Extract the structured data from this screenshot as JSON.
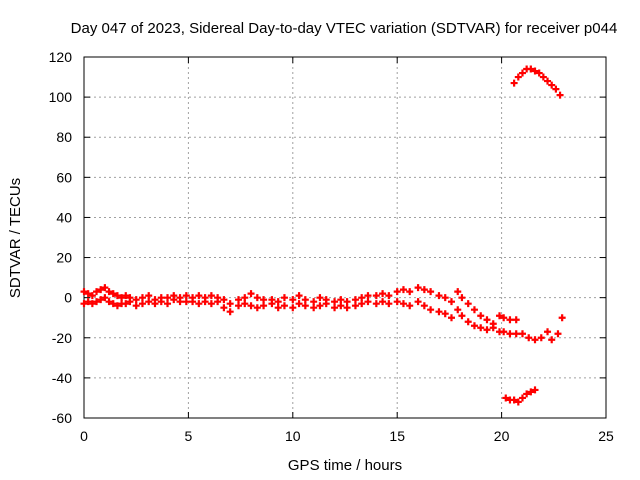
{
  "chart_data": {
    "type": "scatter",
    "title": "Day 047 of 2023, Sidereal Day-to-day VTEC variation (SDTVAR) for receiver p044",
    "xlabel": "GPS time / hours",
    "ylabel": "SDTVAR / TECUs",
    "xlim": [
      0,
      25
    ],
    "ylim": [
      -60,
      120
    ],
    "xticks": [
      0,
      5,
      10,
      15,
      20,
      25
    ],
    "yticks": [
      -60,
      -40,
      -20,
      0,
      20,
      40,
      60,
      80,
      100,
      120
    ],
    "grid": true,
    "marker": "plus",
    "colors": {
      "series": "#ff0000",
      "grid": "#a0a0a0",
      "axes": "#000000"
    },
    "series": [
      {
        "name": "main band",
        "points": [
          [
            0.0,
            3
          ],
          [
            0.0,
            -3
          ],
          [
            0.2,
            2
          ],
          [
            0.2,
            -2
          ],
          [
            0.4,
            1
          ],
          [
            0.4,
            -3
          ],
          [
            0.6,
            3
          ],
          [
            0.6,
            -2
          ],
          [
            0.8,
            4
          ],
          [
            0.8,
            -1
          ],
          [
            1.0,
            5
          ],
          [
            1.0,
            0
          ],
          [
            1.2,
            3
          ],
          [
            1.2,
            -2
          ],
          [
            1.4,
            2
          ],
          [
            1.4,
            -3
          ],
          [
            1.6,
            1
          ],
          [
            1.6,
            -4
          ],
          [
            1.8,
            0
          ],
          [
            1.8,
            -3
          ],
          [
            2.0,
            1
          ],
          [
            2.0,
            -3
          ],
          [
            2.2,
            0
          ],
          [
            2.2,
            -2
          ],
          [
            2.5,
            -1
          ],
          [
            2.5,
            -4
          ],
          [
            2.8,
            0
          ],
          [
            2.8,
            -3
          ],
          [
            3.1,
            1
          ],
          [
            3.1,
            -2
          ],
          [
            3.4,
            -1
          ],
          [
            3.4,
            -3
          ],
          [
            3.7,
            0
          ],
          [
            3.7,
            -2
          ],
          [
            4.0,
            0
          ],
          [
            4.0,
            -3
          ],
          [
            4.3,
            1
          ],
          [
            4.3,
            -1
          ],
          [
            4.6,
            0
          ],
          [
            4.6,
            -2
          ],
          [
            4.9,
            1
          ],
          [
            4.9,
            -2
          ],
          [
            5.2,
            0
          ],
          [
            5.2,
            -2
          ],
          [
            5.5,
            1
          ],
          [
            5.5,
            -3
          ],
          [
            5.8,
            0
          ],
          [
            5.8,
            -2
          ],
          [
            6.1,
            1
          ],
          [
            6.1,
            -3
          ],
          [
            6.4,
            0
          ],
          [
            6.4,
            -2
          ],
          [
            6.7,
            -1
          ],
          [
            6.7,
            -5
          ],
          [
            7.0,
            -3
          ],
          [
            7.0,
            -7
          ],
          [
            7.4,
            -1
          ],
          [
            7.4,
            -4
          ],
          [
            7.7,
            0
          ],
          [
            7.7,
            -3
          ],
          [
            8.0,
            2
          ],
          [
            8.0,
            -4
          ],
          [
            8.3,
            0
          ],
          [
            8.3,
            -5
          ],
          [
            8.6,
            -1
          ],
          [
            8.6,
            -4
          ],
          [
            9.0,
            -1
          ],
          [
            9.0,
            -3
          ],
          [
            9.3,
            -2
          ],
          [
            9.3,
            -5
          ],
          [
            9.6,
            0
          ],
          [
            9.6,
            -4
          ],
          [
            10.0,
            -1
          ],
          [
            10.0,
            -5
          ],
          [
            10.3,
            1
          ],
          [
            10.3,
            -3
          ],
          [
            10.6,
            -1
          ],
          [
            10.6,
            -4
          ],
          [
            11.0,
            -2
          ],
          [
            11.0,
            -5
          ],
          [
            11.3,
            0
          ],
          [
            11.3,
            -4
          ],
          [
            11.6,
            -1
          ],
          [
            11.6,
            -3
          ],
          [
            12.0,
            -2
          ],
          [
            12.0,
            -5
          ],
          [
            12.3,
            -1
          ],
          [
            12.3,
            -4
          ],
          [
            12.6,
            -2
          ],
          [
            12.6,
            -5
          ],
          [
            13.0,
            -1
          ],
          [
            13.0,
            -4
          ],
          [
            13.3,
            0
          ],
          [
            13.3,
            -3
          ],
          [
            13.6,
            1
          ],
          [
            13.6,
            -2
          ],
          [
            14.0,
            1
          ],
          [
            14.0,
            -3
          ],
          [
            14.3,
            2
          ],
          [
            14.3,
            -2
          ],
          [
            14.6,
            1
          ],
          [
            14.6,
            -3
          ],
          [
            15.0,
            3
          ],
          [
            15.0,
            -2
          ],
          [
            15.3,
            4
          ],
          [
            15.3,
            -3
          ],
          [
            15.6,
            3
          ],
          [
            15.6,
            -4
          ],
          [
            16.0,
            5
          ],
          [
            16.0,
            -2
          ],
          [
            16.3,
            4
          ],
          [
            16.3,
            -4
          ],
          [
            16.6,
            3
          ],
          [
            16.6,
            -6
          ],
          [
            17.0,
            1
          ],
          [
            17.0,
            -7
          ],
          [
            17.3,
            0
          ],
          [
            17.3,
            -8
          ],
          [
            17.6,
            -2
          ],
          [
            17.6,
            -10
          ],
          [
            17.9,
            3
          ],
          [
            17.9,
            -6
          ],
          [
            18.1,
            0
          ],
          [
            18.1,
            -9
          ],
          [
            18.4,
            -3
          ],
          [
            18.4,
            -12
          ],
          [
            18.7,
            -6
          ],
          [
            18.7,
            -14
          ],
          [
            19.0,
            -9
          ],
          [
            19.0,
            -15
          ],
          [
            19.3,
            -11
          ],
          [
            19.3,
            -16
          ],
          [
            19.6,
            -13
          ],
          [
            19.6,
            -15
          ],
          [
            19.9,
            -9
          ],
          [
            19.9,
            -17
          ],
          [
            20.1,
            -10
          ],
          [
            20.1,
            -17
          ],
          [
            20.4,
            -11
          ],
          [
            20.4,
            -18
          ],
          [
            20.7,
            -11
          ],
          [
            20.7,
            -18
          ],
          [
            21.0,
            -18
          ],
          [
            21.3,
            -20
          ],
          [
            21.6,
            -21
          ],
          [
            21.9,
            -20
          ],
          [
            22.2,
            -17
          ],
          [
            22.4,
            -21
          ],
          [
            22.7,
            -18
          ],
          [
            22.9,
            -10
          ]
        ]
      },
      {
        "name": "upper arc",
        "points": [
          [
            20.6,
            107
          ],
          [
            20.8,
            110
          ],
          [
            21.0,
            112
          ],
          [
            21.2,
            114
          ],
          [
            21.4,
            114
          ],
          [
            21.6,
            113
          ],
          [
            21.8,
            112
          ],
          [
            22.0,
            110
          ],
          [
            22.2,
            108
          ],
          [
            22.4,
            106
          ],
          [
            22.6,
            104
          ],
          [
            22.8,
            101
          ]
        ]
      },
      {
        "name": "lower segment",
        "points": [
          [
            20.2,
            -50
          ],
          [
            20.4,
            -51
          ],
          [
            20.6,
            -51
          ],
          [
            20.8,
            -52
          ],
          [
            21.0,
            -50
          ],
          [
            21.2,
            -48
          ],
          [
            21.4,
            -47
          ],
          [
            21.6,
            -46
          ]
        ]
      }
    ]
  }
}
